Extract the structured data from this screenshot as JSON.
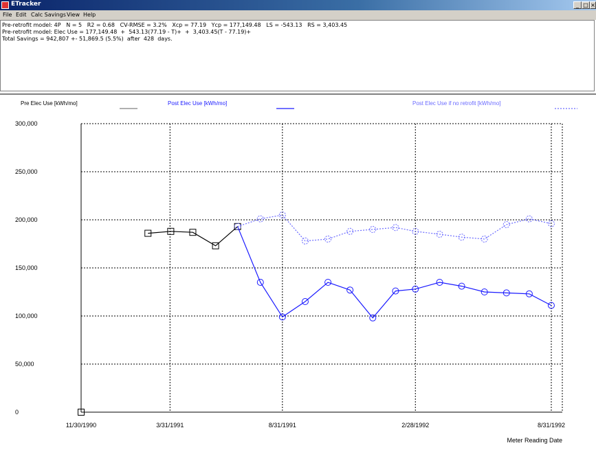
{
  "window": {
    "title": "ETracker",
    "controls": [
      "_",
      "□",
      "×"
    ]
  },
  "menu": [
    "File",
    "Edit",
    "Calc Savings",
    "View",
    "Help"
  ],
  "info": [
    "Pre-retrofit model: 4P   N = 5   R2 = 0.68   CV-RMSE = 3.2%   Xcp = 77.19   Ycp = 177,149.48   LS = -543.13   RS = 3,403.45",
    "Pre-retrofit model: Elec Use = 177,149.48  +  543.13(77.19 - T)+  +  3,403.45(T - 77.19)+",
    "Total Savings = 942,807 +- 51,869.5 (5.5%)  after  428  days."
  ],
  "chart_data": {
    "type": "line",
    "xlabel": "Meter Reading Date",
    "ylabel": "",
    "ylim": [
      0,
      300000
    ],
    "yticks": [
      "300,000",
      "250,000",
      "200,000",
      "150,000",
      "100,000",
      "50,000",
      "0"
    ],
    "xticks": [
      "11/30/1990",
      "3/31/1991",
      "8/31/1991",
      "2/28/1992",
      "8/31/1992"
    ],
    "grid": true,
    "legend_position": "top",
    "series": [
      {
        "name": "Pre Elec Use [kWh/mo]",
        "color": "#000000",
        "style": "solid",
        "marker": "square",
        "x": [
          "1990-11-30",
          "1991-03-01",
          "1991-04-01",
          "1991-05-01",
          "1991-06-01",
          "1991-07-01"
        ],
        "y": [
          0,
          186000,
          188000,
          187000,
          173000,
          193000
        ]
      },
      {
        "name": "Post Elec Use [kWh/mo]",
        "color": "#1a1aff",
        "style": "solid",
        "marker": "circle",
        "x": [
          "1991-07-01",
          "1991-08-01",
          "1991-08-31",
          "1991-10-01",
          "1991-11-01",
          "1991-12-01",
          "1992-01-01",
          "1992-02-01",
          "1992-02-28",
          "1992-04-01",
          "1992-05-01",
          "1992-06-01",
          "1992-07-01",
          "1992-08-01",
          "1992-08-31"
        ],
        "y": [
          193000,
          135000,
          99000,
          115000,
          135000,
          127000,
          98000,
          126000,
          128000,
          135000,
          131000,
          125000,
          124000,
          123000,
          111000
        ]
      },
      {
        "name": "Post Elec Use if no retrofit [kWh/mo]",
        "color": "#6a6aff",
        "style": "dotted",
        "marker": "circle",
        "x": [
          "1991-07-01",
          "1991-08-01",
          "1991-08-31",
          "1991-10-01",
          "1991-11-01",
          "1991-12-01",
          "1992-01-01",
          "1992-02-01",
          "1992-02-28",
          "1992-04-01",
          "1992-05-01",
          "1992-06-01",
          "1992-07-01",
          "1992-08-01",
          "1992-08-31"
        ],
        "y": [
          193000,
          201000,
          205000,
          178000,
          180000,
          188000,
          190000,
          192000,
          188000,
          185000,
          182000,
          180000,
          195000,
          201000,
          196000
        ]
      }
    ]
  }
}
